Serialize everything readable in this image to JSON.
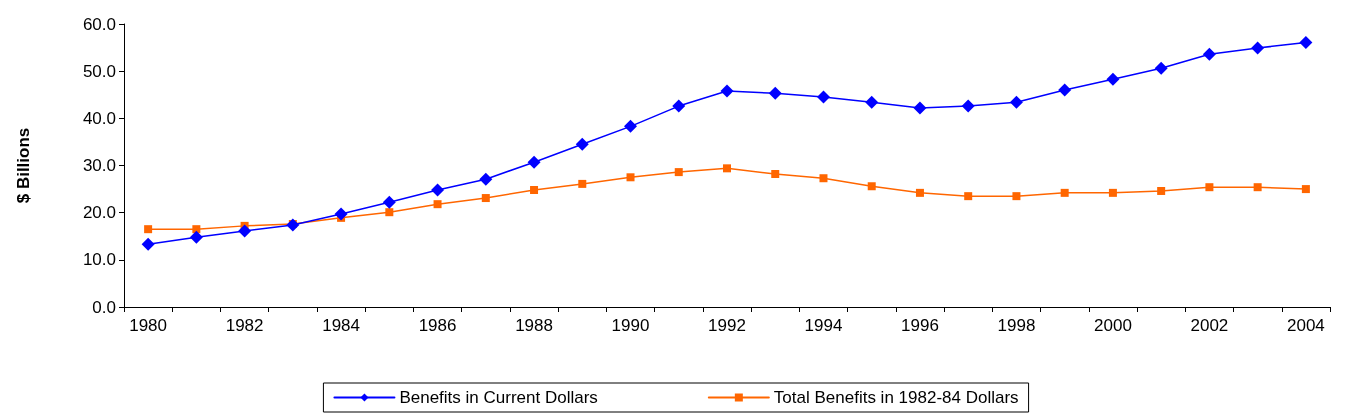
{
  "chart_data": {
    "type": "line",
    "ylabel": "$ Billions",
    "categories": [
      "1980",
      null,
      "1982",
      null,
      "1984",
      null,
      "1986",
      null,
      "1988",
      null,
      "1990",
      null,
      "1992",
      null,
      "1994",
      null,
      "1996",
      null,
      "1998",
      null,
      "2000",
      null,
      "2002",
      null,
      "2004"
    ],
    "series": [
      {
        "name": "Benefits in Current Dollars",
        "color": "#0000ff",
        "marker": "diamond",
        "values": [
          13.3,
          14.8,
          16.1,
          17.4,
          19.7,
          22.2,
          24.8,
          27.1,
          30.7,
          34.5,
          38.3,
          42.6,
          45.8,
          45.3,
          44.5,
          43.4,
          42.2,
          42.6,
          43.4,
          46.0,
          48.3,
          50.6,
          53.6,
          54.9,
          56.1
        ]
      },
      {
        "name": "Total Benefits in 1982-84 Dollars",
        "color": "#ff6600",
        "marker": "square",
        "values": [
          16.5,
          16.5,
          17.2,
          17.6,
          18.9,
          20.1,
          21.8,
          23.1,
          24.8,
          26.1,
          27.5,
          28.6,
          29.4,
          28.2,
          27.3,
          25.6,
          24.2,
          23.5,
          23.5,
          24.2,
          24.2,
          24.6,
          25.4,
          25.4,
          25.0
        ]
      }
    ],
    "ylim": [
      0,
      60
    ],
    "yticks": [
      {
        "value": 0,
        "label": "0.0"
      },
      {
        "value": 10,
        "label": "10.0"
      },
      {
        "value": 20,
        "label": "20.0"
      },
      {
        "value": 30,
        "label": "30.0"
      },
      {
        "value": 40,
        "label": "40.0"
      },
      {
        "value": 50,
        "label": "50.0"
      },
      {
        "value": 60,
        "label": "60.0"
      }
    ],
    "grid": false,
    "legend": "bottom",
    "line_style": "solid"
  }
}
